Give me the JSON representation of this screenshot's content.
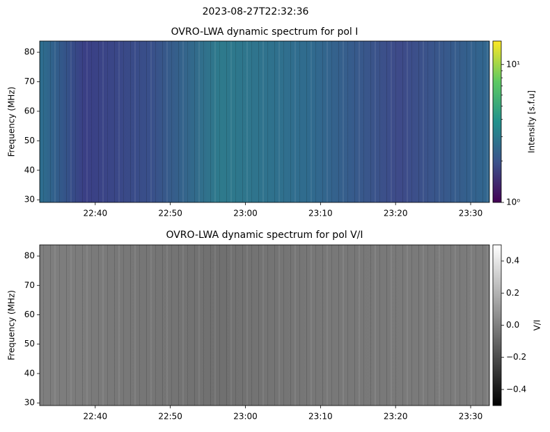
{
  "figure_title": "2023-08-27T22:32:36",
  "chart_data": [
    {
      "type": "heatmap",
      "title": "OVRO-LWA dynamic spectrum for pol I",
      "ylabel": "Frequency (MHz)",
      "xlim": [
        1352.6,
        1412.5
      ],
      "xticks": [
        {
          "value": 1360,
          "label": "22:40"
        },
        {
          "value": 1370,
          "label": "22:50"
        },
        {
          "value": 1380,
          "label": "23:00"
        },
        {
          "value": 1390,
          "label": "23:10"
        },
        {
          "value": 1400,
          "label": "23:20"
        },
        {
          "value": 1410,
          "label": "23:30"
        }
      ],
      "ylim": [
        29.1,
        83.8
      ],
      "yticks": [
        30,
        40,
        50,
        60,
        70,
        80
      ],
      "colorbar": {
        "label": "Intensity [s.f.u]",
        "colormap": "viridis",
        "log": true,
        "lim": [
          1,
          14.8
        ],
        "ticks": [
          {
            "value": 1,
            "label": "10⁰"
          },
          {
            "value": 10,
            "label": "10¹"
          }
        ]
      }
    },
    {
      "type": "heatmap",
      "title": "OVRO-LWA dynamic spectrum for pol V/I",
      "ylabel": "Frequency (MHz)",
      "xlim": [
        1352.6,
        1412.5
      ],
      "xticks": [
        {
          "value": 1360,
          "label": "22:40"
        },
        {
          "value": 1370,
          "label": "22:50"
        },
        {
          "value": 1380,
          "label": "23:00"
        },
        {
          "value": 1390,
          "label": "23:10"
        },
        {
          "value": 1400,
          "label": "23:20"
        },
        {
          "value": 1410,
          "label": "23:30"
        }
      ],
      "ylim": [
        29.1,
        83.8
      ],
      "yticks": [
        30,
        40,
        50,
        60,
        70,
        80
      ],
      "colorbar": {
        "label": "V/I",
        "colormap": "gray",
        "log": false,
        "lim": [
          -0.5,
          0.5
        ],
        "ticks": [
          {
            "value": -0.4,
            "label": "−0.4"
          },
          {
            "value": -0.2,
            "label": "−0.2"
          },
          {
            "value": 0,
            "label": "0.0"
          },
          0.2,
          0.4
        ]
      }
    }
  ]
}
